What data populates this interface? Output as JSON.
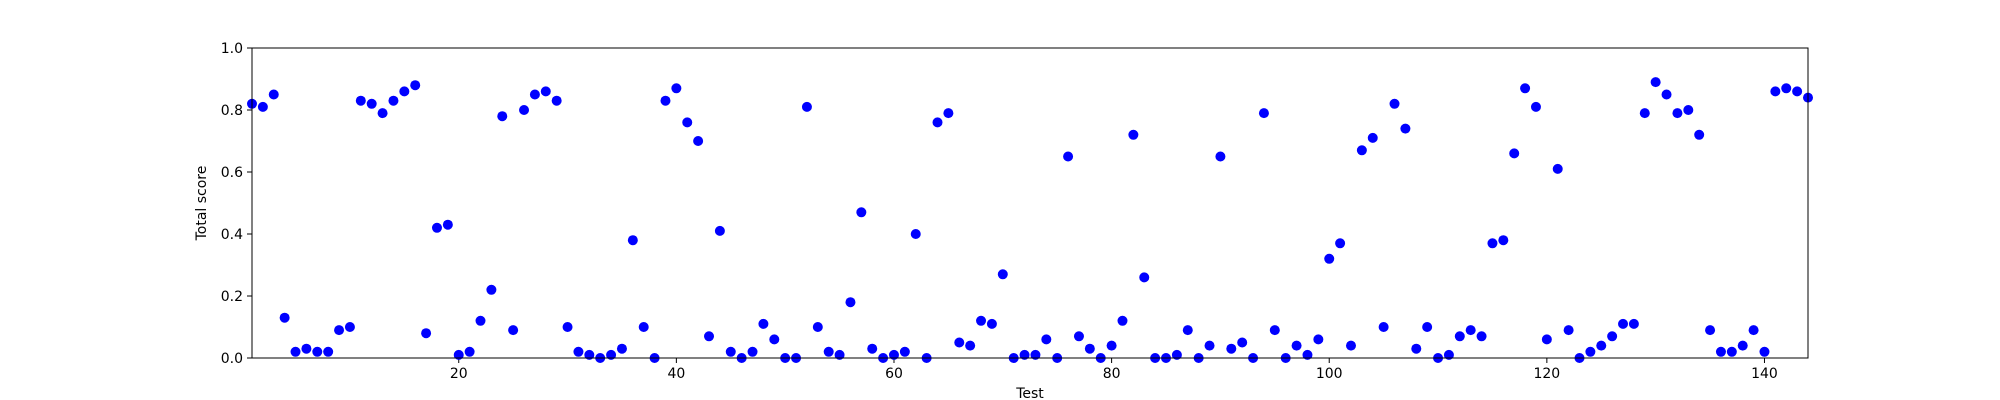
{
  "chart_data": {
    "type": "scatter",
    "title": "",
    "xlabel": "Test",
    "ylabel": "Total score",
    "xlim": [
      1,
      144
    ],
    "ylim": [
      0.0,
      1.0
    ],
    "xticks": [
      20,
      40,
      60,
      80,
      100,
      120,
      140
    ],
    "yticks": [
      0.0,
      0.2,
      0.4,
      0.6,
      0.8,
      1.0
    ],
    "xtick_labels": [
      "20",
      "40",
      "60",
      "80",
      "100",
      "120",
      "140"
    ],
    "ytick_labels": [
      "0.0",
      "0.2",
      "0.4",
      "0.6",
      "0.8",
      "1.0"
    ],
    "grid": false,
    "marker_color": "#0000ff",
    "x": [
      1,
      2,
      3,
      4,
      5,
      6,
      7,
      8,
      9,
      10,
      11,
      12,
      13,
      14,
      15,
      16,
      17,
      18,
      19,
      20,
      21,
      22,
      23,
      24,
      25,
      26,
      27,
      28,
      29,
      30,
      31,
      32,
      33,
      34,
      35,
      36,
      37,
      38,
      39,
      40,
      41,
      42,
      43,
      44,
      45,
      46,
      47,
      48,
      49,
      50,
      51,
      52,
      53,
      54,
      55,
      56,
      57,
      58,
      59,
      60,
      61,
      62,
      63,
      64,
      65,
      66,
      67,
      68,
      69,
      70,
      71,
      72,
      73,
      74,
      75,
      76,
      77,
      78,
      79,
      80,
      81,
      82,
      83,
      84,
      85,
      86,
      87,
      88,
      89,
      90,
      91,
      92,
      93,
      94,
      95,
      96,
      97,
      98,
      99,
      100,
      101,
      102,
      103,
      104,
      105,
      106,
      107,
      108,
      109,
      110,
      111,
      112,
      113,
      114,
      115,
      116,
      117,
      118,
      119,
      120,
      121,
      122,
      123,
      124,
      125,
      126,
      127,
      128,
      129,
      130,
      131,
      132,
      133,
      134,
      135,
      136,
      137,
      138,
      139,
      140,
      141,
      142,
      143,
      144
    ],
    "y": [
      0.82,
      0.81,
      0.85,
      0.13,
      0.02,
      0.03,
      0.02,
      0.02,
      0.09,
      0.1,
      0.83,
      0.82,
      0.79,
      0.83,
      0.86,
      0.88,
      0.08,
      0.42,
      0.43,
      0.01,
      0.02,
      0.12,
      0.22,
      0.78,
      0.09,
      0.8,
      0.85,
      0.86,
      0.83,
      0.1,
      0.02,
      0.01,
      0.0,
      0.01,
      0.03,
      0.38,
      0.1,
      0.0,
      0.83,
      0.87,
      0.76,
      0.7,
      0.07,
      0.41,
      0.02,
      0.0,
      0.02,
      0.11,
      0.06,
      0.0,
      0.0,
      0.81,
      0.1,
      0.02,
      0.01,
      0.18,
      0.47,
      0.03,
      0.0,
      0.01,
      0.02,
      0.4,
      0.0,
      0.76,
      0.79,
      0.05,
      0.04,
      0.12,
      0.11,
      0.27,
      0.0,
      0.01,
      0.01,
      0.06,
      0.0,
      0.65,
      0.07,
      0.03,
      0.0,
      0.04,
      0.12,
      0.72,
      0.26,
      0.0,
      0.0,
      0.01,
      0.09,
      0.0,
      0.04,
      0.65,
      0.03,
      0.05,
      0.0,
      0.79,
      0.09,
      0.0,
      0.04,
      0.01,
      0.06,
      0.32,
      0.37,
      0.04,
      0.67,
      0.71,
      0.1,
      0.82,
      0.74,
      0.03,
      0.1,
      0.0,
      0.01,
      0.07,
      0.09,
      0.07,
      0.37,
      0.38,
      0.66,
      0.87,
      0.81,
      0.06,
      0.61,
      0.09,
      0.0,
      0.02,
      0.04,
      0.07,
      0.11,
      0.11,
      0.79,
      0.89,
      0.85,
      0.79,
      0.8,
      0.72,
      0.09,
      0.02,
      0.02,
      0.04,
      0.09,
      0.02,
      0.86,
      0.87,
      0.86,
      0.84
    ]
  }
}
